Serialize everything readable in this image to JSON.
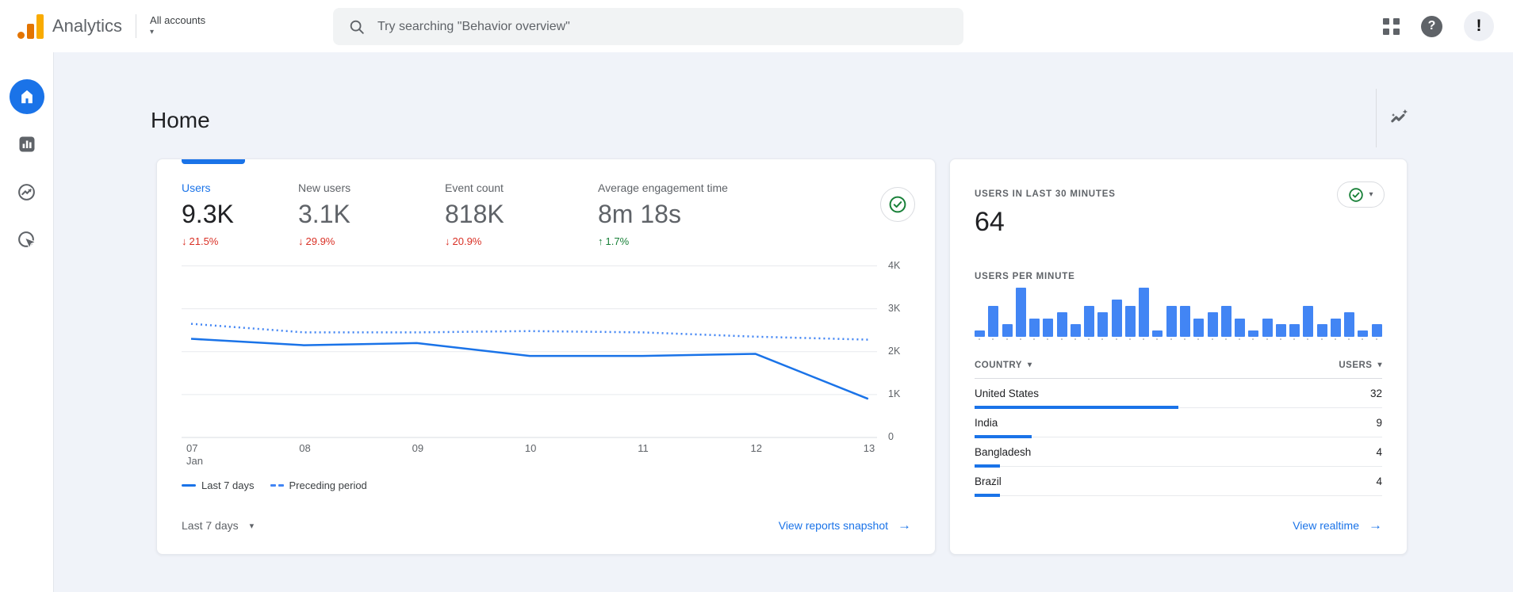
{
  "header": {
    "brand": "Analytics",
    "account_switcher": "All accounts",
    "search": {
      "placeholder": "Try searching \"Behavior overview\""
    },
    "icons": {
      "help": "?",
      "avatar_badge": "!"
    }
  },
  "icons": {
    "caret_down": "▾",
    "arrow_right": "→",
    "arrow_down": "↓",
    "arrow_up": "↑"
  },
  "sidebar": {
    "items": [
      {
        "name": "home"
      },
      {
        "name": "reports"
      },
      {
        "name": "explore"
      },
      {
        "name": "advertising"
      }
    ]
  },
  "page": {
    "title": "Home"
  },
  "overview_card": {
    "metrics": [
      {
        "label": "Users",
        "value": "9.3K",
        "delta": "21.5%",
        "direction": "down",
        "selected": true
      },
      {
        "label": "New users",
        "value": "3.1K",
        "delta": "29.9%",
        "direction": "down",
        "selected": false
      },
      {
        "label": "Event count",
        "value": "818K",
        "delta": "20.9%",
        "direction": "down",
        "selected": false
      },
      {
        "label": "Average engagement time",
        "value": "8m 18s",
        "delta": "1.7%",
        "direction": "up",
        "selected": false
      }
    ],
    "legend": [
      {
        "label": "Last 7 days",
        "style": "solid"
      },
      {
        "label": "Preceding period",
        "style": "dotted"
      }
    ],
    "range_selector": "Last 7 days",
    "snapshot_link": "View reports snapshot"
  },
  "realtime_card": {
    "title": "USERS IN LAST 30 MINUTES",
    "users_last_30min": "64",
    "chart_title": "USERS PER MINUTE",
    "table": {
      "columns": [
        "COUNTRY",
        "USERS"
      ],
      "total_users": 64,
      "rows": [
        {
          "country": "United States",
          "users": 32
        },
        {
          "country": "India",
          "users": 9
        },
        {
          "country": "Bangladesh",
          "users": 4
        },
        {
          "country": "Brazil",
          "users": 4
        }
      ]
    },
    "realtime_link": "View realtime"
  },
  "chart_data": [
    {
      "type": "line",
      "title": "Users by day (last 7 days vs preceding period)",
      "x": [
        {
          "label": "07",
          "sub": "Jan"
        },
        {
          "label": "08"
        },
        {
          "label": "09"
        },
        {
          "label": "10"
        },
        {
          "label": "11"
        },
        {
          "label": "12"
        },
        {
          "label": "13"
        }
      ],
      "series": [
        {
          "name": "Last 7 days",
          "style": "solid",
          "color": "#1a73e8",
          "values": [
            2300,
            2150,
            2200,
            1900,
            1900,
            1950,
            900
          ]
        },
        {
          "name": "Preceding period",
          "style": "dotted",
          "color": "#4285f4",
          "values": [
            2650,
            2450,
            2450,
            2480,
            2450,
            2350,
            2280
          ]
        }
      ],
      "ylim": [
        0,
        4000
      ],
      "yticks": [
        {
          "value": 0,
          "label": "0"
        },
        {
          "value": 1000,
          "label": "1K"
        },
        {
          "value": 2000,
          "label": "2K"
        },
        {
          "value": 3000,
          "label": "3K"
        },
        {
          "value": 4000,
          "label": "4K"
        }
      ],
      "grid": "horizontal",
      "legend_position": "bottom-left"
    },
    {
      "type": "bar",
      "title": "USERS PER MINUTE",
      "values": [
        1,
        5,
        2,
        8,
        3,
        3,
        4,
        2,
        5,
        4,
        6,
        5,
        8,
        1,
        5,
        5,
        3,
        4,
        5,
        3,
        1,
        3,
        2,
        2,
        5,
        2,
        3,
        4,
        1,
        2
      ],
      "ylim": [
        0,
        8
      ],
      "color": "#4285f4"
    }
  ]
}
